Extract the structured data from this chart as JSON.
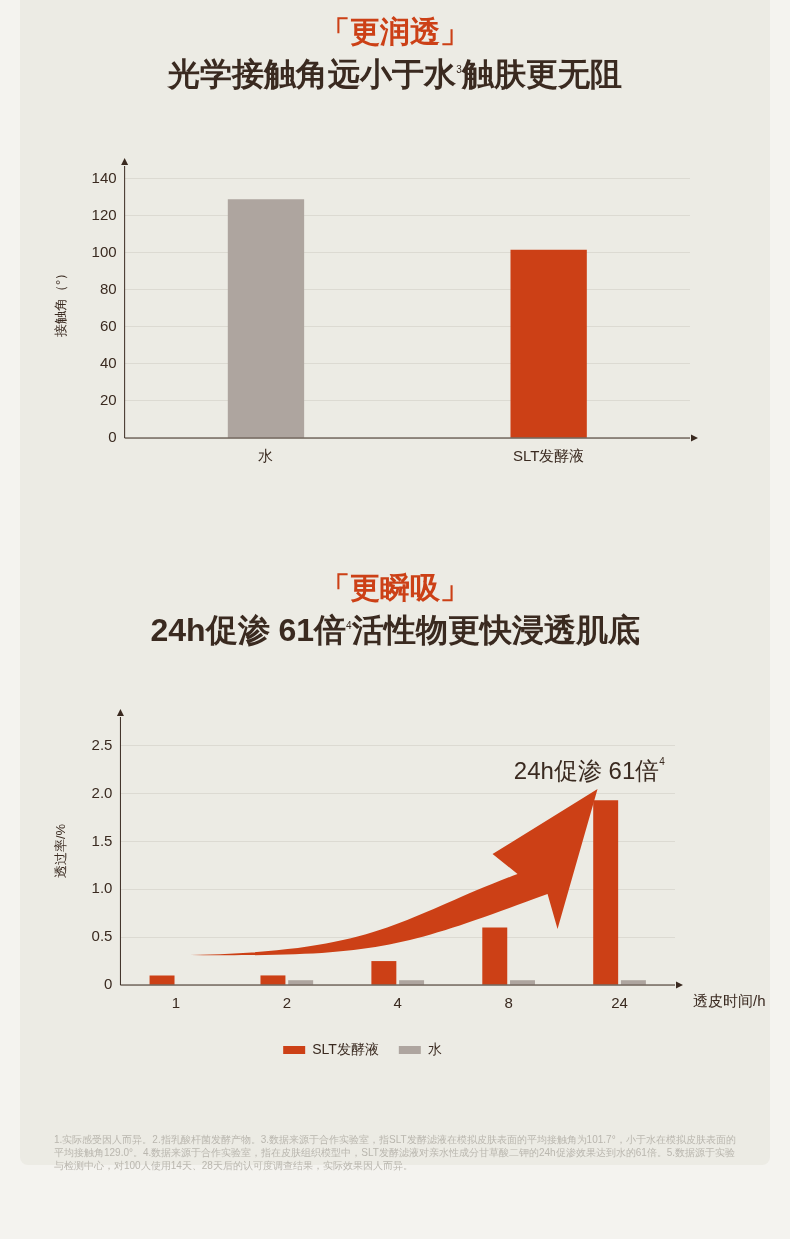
{
  "chart_data": [
    {
      "type": "bar",
      "title": "「更润透」",
      "subtitle": "光学接触角远小于水$^{3}$触肤更无阻",
      "ylabel": "接触角（°）",
      "categories": [
        "水",
        "SLT发酵液"
      ],
      "values": [
        129.0,
        101.7
      ],
      "colors": [
        "#aea59f",
        "#cc4016"
      ],
      "ylim": [
        0,
        147
      ],
      "yticks": [
        0,
        20,
        40,
        60,
        80,
        100,
        120,
        140
      ],
      "grid": "y",
      "legend": false
    },
    {
      "type": "bar",
      "title": "「更瞬吸」",
      "subtitle": "24h促渗 61倍$^{4}$活性物更快浸透肌底",
      "xlabel": "透皮时间/h",
      "ylabel": "透过率/%",
      "categories": [
        "1",
        "2",
        "4",
        "8",
        "24"
      ],
      "series": [
        {
          "name": "SLT发酵液",
          "color": "#cc4016",
          "values": [
            0.1,
            0.1,
            0.25,
            0.6,
            1.93
          ]
        },
        {
          "name": "水",
          "color": "#aea59f",
          "values": [
            null,
            0.05,
            0.05,
            0.05,
            0.05
          ]
        }
      ],
      "ylim": [
        0,
        2.8
      ],
      "yticks": [
        0,
        0.5,
        {
          "value": 1,
          "label": "1.0"
        },
        1.5,
        {
          "value": 2,
          "label": "2.0"
        },
        2.5
      ],
      "grid": "y",
      "legend": "bottom",
      "annotations": [
        "24h促渗 61倍$^{4}$",
        "1.实际感受因人而异。2.指乳酸杆菌发酵产物。3.数据来源于合作实验室，指SLT发酵滤液在模拟皮肤表面的平均接触角为101.7°，小于水在模拟皮肤表面的平均接触角129.0°。4.数据来源于合作实验室，指在皮肤组织模型中，SLT发酵滤液对亲水性成分甘草酸二钾的24h促渗效果达到水的61倍。5.数据源于实验与检测中心，对100人使用14天、28天后的认可度调查结果，实际效果因人而异。"
      ]
    }
  ]
}
